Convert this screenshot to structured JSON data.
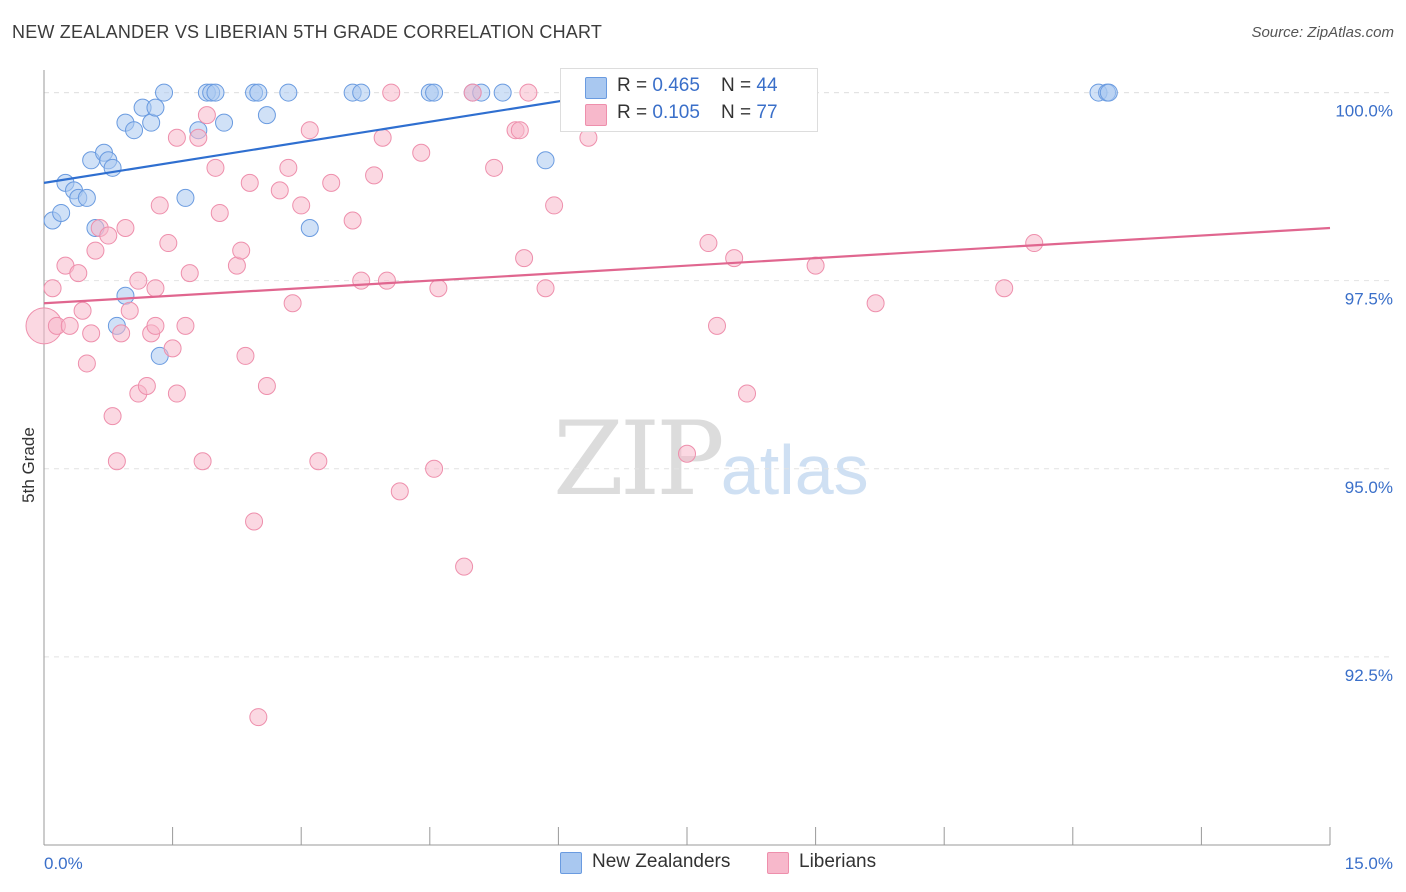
{
  "title": "NEW ZEALANDER VS LIBERIAN 5TH GRADE CORRELATION CHART",
  "source": "Source: ZipAtlas.com",
  "watermark": {
    "zip": "ZIP",
    "atlas": "atlas"
  },
  "legend": {
    "rows": [
      {
        "r_label": "R = ",
        "r_value": "0.465",
        "n_label": "N = ",
        "n_value": "44",
        "color": "#a9c8f0"
      },
      {
        "r_label": "R = ",
        "r_value": "0.105",
        "n_label": "N = ",
        "n_value": "77",
        "color": "#f7b8cb"
      }
    ]
  },
  "bottom_legend": [
    {
      "label": "New Zealanders",
      "color": "#a9c8f0"
    },
    {
      "label": "Liberians",
      "color": "#f7b8cb"
    }
  ],
  "chart_data": {
    "type": "scatter",
    "title": "NEW ZEALANDER VS LIBERIAN 5TH GRADE CORRELATION CHART",
    "xlabel": "",
    "ylabel": "5th Grade",
    "xlim": [
      0,
      15
    ],
    "ylim": [
      90.0,
      100.3
    ],
    "x_ticks": [
      {
        "value": 0,
        "label": "0.0%"
      },
      {
        "value": 15,
        "label": "15.0%"
      }
    ],
    "y_ticks": [
      {
        "value": 100.0,
        "label": "100.0%"
      },
      {
        "value": 97.5,
        "label": "97.5%"
      },
      {
        "value": 95.0,
        "label": "95.0%"
      },
      {
        "value": 92.5,
        "label": "92.5%"
      }
    ],
    "grid": true,
    "series": [
      {
        "name": "New Zealanders",
        "color": "#a9c8f0",
        "stroke": "#6a9be0",
        "line_color": "#2f6fd0",
        "trend": [
          [
            0,
            98.8
          ],
          [
            7.2,
            100.1
          ]
        ],
        "points": [
          [
            0.1,
            98.3
          ],
          [
            0.2,
            98.4
          ],
          [
            0.25,
            98.8
          ],
          [
            0.35,
            98.7
          ],
          [
            0.4,
            98.6
          ],
          [
            0.5,
            98.6
          ],
          [
            0.55,
            99.1
          ],
          [
            0.6,
            98.2
          ],
          [
            0.7,
            99.2
          ],
          [
            0.75,
            99.1
          ],
          [
            0.8,
            99.0
          ],
          [
            0.85,
            96.9
          ],
          [
            0.95,
            97.3
          ],
          [
            0.95,
            99.6
          ],
          [
            1.05,
            99.5
          ],
          [
            1.15,
            99.8
          ],
          [
            1.25,
            99.6
          ],
          [
            1.3,
            99.8
          ],
          [
            1.35,
            96.5
          ],
          [
            1.4,
            100.0
          ],
          [
            1.65,
            98.6
          ],
          [
            1.8,
            99.5
          ],
          [
            1.9,
            100.0
          ],
          [
            1.95,
            100.0
          ],
          [
            2.0,
            100.0
          ],
          [
            2.1,
            99.6
          ],
          [
            2.45,
            100.0
          ],
          [
            2.5,
            100.0
          ],
          [
            2.6,
            99.7
          ],
          [
            2.85,
            100.0
          ],
          [
            3.1,
            98.2
          ],
          [
            3.6,
            100.0
          ],
          [
            3.7,
            100.0
          ],
          [
            4.5,
            100.0
          ],
          [
            4.55,
            100.0
          ],
          [
            5.0,
            100.0
          ],
          [
            5.1,
            100.0
          ],
          [
            5.35,
            100.0
          ],
          [
            5.85,
            99.1
          ],
          [
            6.45,
            100.0
          ],
          [
            6.55,
            100.0
          ],
          [
            12.3,
            100.0
          ],
          [
            12.4,
            100.0
          ],
          [
            12.42,
            100.0
          ]
        ]
      },
      {
        "name": "Liberians",
        "color": "#f7b8cb",
        "stroke": "#ee8fac",
        "line_color": "#e0668f",
        "trend": [
          [
            0,
            97.2
          ],
          [
            15,
            98.2
          ]
        ],
        "points": [
          [
            0.0,
            96.9
          ],
          [
            0.1,
            97.4
          ],
          [
            0.15,
            96.9
          ],
          [
            0.25,
            97.7
          ],
          [
            0.3,
            96.9
          ],
          [
            0.4,
            97.6
          ],
          [
            0.45,
            97.1
          ],
          [
            0.5,
            96.4
          ],
          [
            0.55,
            96.8
          ],
          [
            0.6,
            97.9
          ],
          [
            0.65,
            98.2
          ],
          [
            0.75,
            98.1
          ],
          [
            0.8,
            95.7
          ],
          [
            0.85,
            95.1
          ],
          [
            0.9,
            96.8
          ],
          [
            0.95,
            98.2
          ],
          [
            1.0,
            97.1
          ],
          [
            1.1,
            96.0
          ],
          [
            1.1,
            97.5
          ],
          [
            1.2,
            96.1
          ],
          [
            1.25,
            96.8
          ],
          [
            1.3,
            97.4
          ],
          [
            1.3,
            96.9
          ],
          [
            1.35,
            98.5
          ],
          [
            1.45,
            98.0
          ],
          [
            1.5,
            96.6
          ],
          [
            1.55,
            96.0
          ],
          [
            1.55,
            99.4
          ],
          [
            1.65,
            96.9
          ],
          [
            1.7,
            97.6
          ],
          [
            1.8,
            99.4
          ],
          [
            1.85,
            95.1
          ],
          [
            1.9,
            99.7
          ],
          [
            2.0,
            99.0
          ],
          [
            2.05,
            98.4
          ],
          [
            2.25,
            97.7
          ],
          [
            2.3,
            97.9
          ],
          [
            2.35,
            96.5
          ],
          [
            2.4,
            98.8
          ],
          [
            2.45,
            94.3
          ],
          [
            2.5,
            91.7
          ],
          [
            2.6,
            96.1
          ],
          [
            2.75,
            98.7
          ],
          [
            2.85,
            99.0
          ],
          [
            2.9,
            97.2
          ],
          [
            3.0,
            98.5
          ],
          [
            3.1,
            99.5
          ],
          [
            3.2,
            95.1
          ],
          [
            3.35,
            98.8
          ],
          [
            3.6,
            98.3
          ],
          [
            3.7,
            97.5
          ],
          [
            3.85,
            98.9
          ],
          [
            3.95,
            99.4
          ],
          [
            4.0,
            97.5
          ],
          [
            4.05,
            100.0
          ],
          [
            4.15,
            94.7
          ],
          [
            4.4,
            99.2
          ],
          [
            4.55,
            95.0
          ],
          [
            4.6,
            97.4
          ],
          [
            4.9,
            93.7
          ],
          [
            5.0,
            100.0
          ],
          [
            5.25,
            99.0
          ],
          [
            5.5,
            99.5
          ],
          [
            5.55,
            99.5
          ],
          [
            5.6,
            97.8
          ],
          [
            5.65,
            100.0
          ],
          [
            5.85,
            97.4
          ],
          [
            5.95,
            98.5
          ],
          [
            6.35,
            99.4
          ],
          [
            7.5,
            95.2
          ],
          [
            7.75,
            98.0
          ],
          [
            7.85,
            96.9
          ],
          [
            8.05,
            97.8
          ],
          [
            8.2,
            96.0
          ],
          [
            9.0,
            97.7
          ],
          [
            9.7,
            97.2
          ],
          [
            11.2,
            97.4
          ],
          [
            11.55,
            98.0
          ]
        ]
      }
    ]
  }
}
